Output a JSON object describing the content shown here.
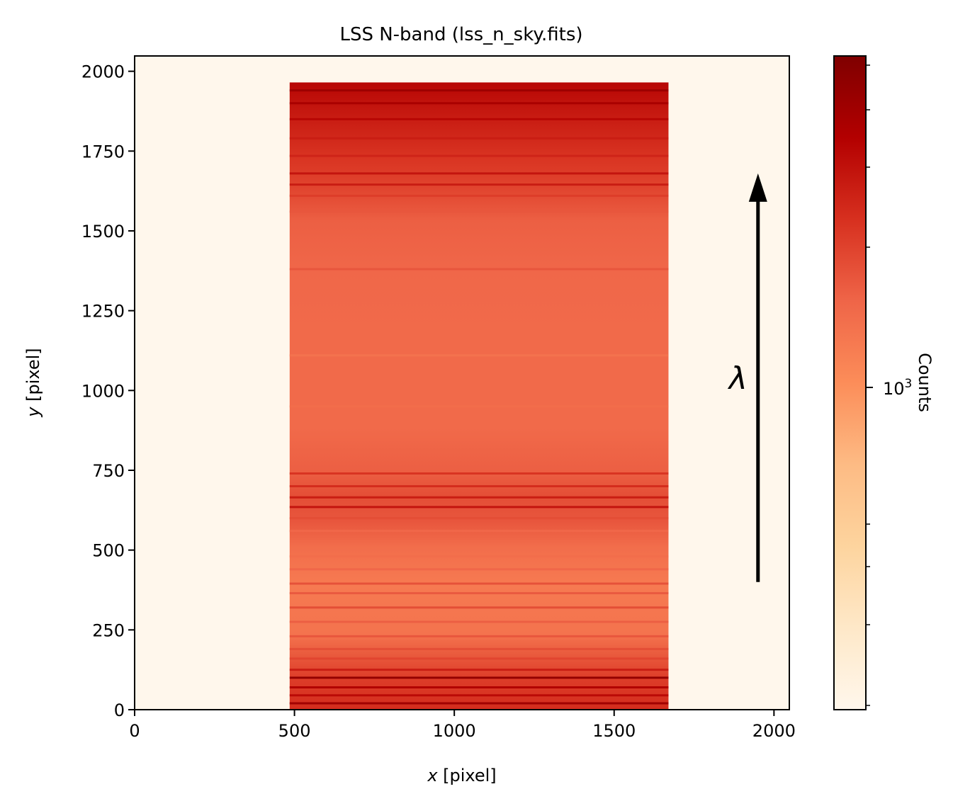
{
  "chart_data": {
    "type": "heatmap",
    "title": "LSS N-band (lss_n_sky.fits)",
    "xlabel_var": "x",
    "xlabel_unit": " [pixel]",
    "ylabel_var": "y",
    "ylabel_unit": " [pixel]",
    "xlim": [
      0,
      2048
    ],
    "ylim": [
      0,
      2048
    ],
    "xticks": [
      0,
      500,
      1000,
      1500,
      2000
    ],
    "yticks": [
      0,
      250,
      500,
      750,
      1000,
      1250,
      1500,
      1750,
      2000
    ],
    "colormap": "OrRd",
    "background_color": "#fff7ec",
    "illuminated_region": {
      "x": [
        485,
        1670
      ],
      "y": [
        0,
        1965
      ]
    },
    "sky_lines": [
      {
        "y": 20,
        "strength": 0.92
      },
      {
        "y": 45,
        "strength": 0.85
      },
      {
        "y": 70,
        "strength": 0.88
      },
      {
        "y": 100,
        "strength": 0.95
      },
      {
        "y": 125,
        "strength": 0.8
      },
      {
        "y": 160,
        "strength": 0.7
      },
      {
        "y": 190,
        "strength": 0.68
      },
      {
        "y": 230,
        "strength": 0.66
      },
      {
        "y": 275,
        "strength": 0.64
      },
      {
        "y": 320,
        "strength": 0.68
      },
      {
        "y": 365,
        "strength": 0.65
      },
      {
        "y": 395,
        "strength": 0.67
      },
      {
        "y": 440,
        "strength": 0.62
      },
      {
        "y": 480,
        "strength": 0.6
      },
      {
        "y": 560,
        "strength": 0.62
      },
      {
        "y": 600,
        "strength": 0.68
      },
      {
        "y": 635,
        "strength": 0.82
      },
      {
        "y": 665,
        "strength": 0.8
      },
      {
        "y": 700,
        "strength": 0.76
      },
      {
        "y": 740,
        "strength": 0.74
      },
      {
        "y": 950,
        "strength": 0.6
      },
      {
        "y": 1110,
        "strength": 0.58
      },
      {
        "y": 1380,
        "strength": 0.66
      },
      {
        "y": 1560,
        "strength": 0.66
      },
      {
        "y": 1610,
        "strength": 0.72
      },
      {
        "y": 1645,
        "strength": 0.8
      },
      {
        "y": 1680,
        "strength": 0.82
      },
      {
        "y": 1735,
        "strength": 0.78
      },
      {
        "y": 1790,
        "strength": 0.8
      },
      {
        "y": 1850,
        "strength": 0.86
      },
      {
        "y": 1900,
        "strength": 0.9
      },
      {
        "y": 1940,
        "strength": 0.93
      }
    ],
    "annotation": {
      "label": "λ",
      "arrow_x": 1950,
      "arrow_from_y": 400,
      "arrow_to_y": 1680
    },
    "colorbar": {
      "label": "Counts",
      "scale": "log",
      "major_tick_label": "10",
      "major_tick_exponent": "3"
    }
  }
}
